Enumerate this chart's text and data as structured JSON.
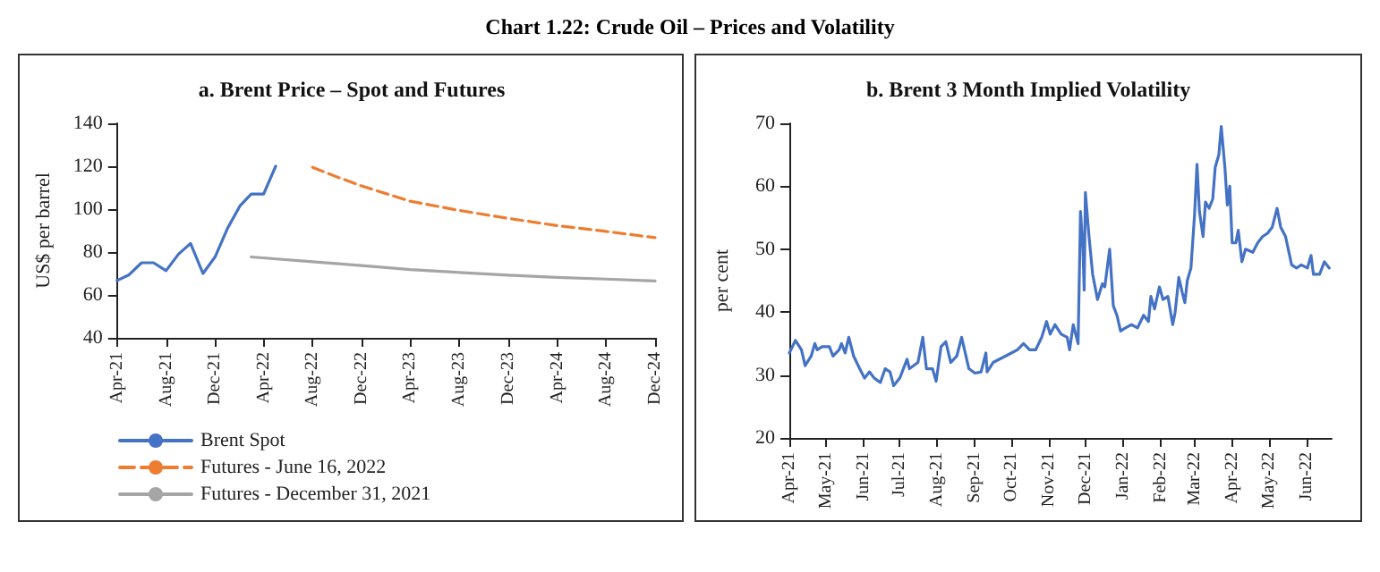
{
  "chart_data": [
    {
      "type": "line",
      "title": "a. Brent Price – Spot and Futures",
      "ylabel": "US$ per barrel",
      "annotations": [
        "Chart 1.22: Crude Oil – Prices and Volatility"
      ],
      "legend": "bottom",
      "marker": "none",
      "xlim": [
        "2021-04",
        "2024-12"
      ],
      "xticks": [
        {
          "value": "2021-04",
          "label": "Apr-21"
        },
        {
          "value": "2021-08",
          "label": "Aug-21"
        },
        {
          "value": "2021-12",
          "label": "Dec-21"
        },
        {
          "value": "2022-04",
          "label": "Apr-22"
        },
        {
          "value": "2022-08",
          "label": "Aug-22"
        },
        {
          "value": "2022-12",
          "label": "Dec-22"
        },
        {
          "value": "2023-04",
          "label": "Apr-23"
        },
        {
          "value": "2023-08",
          "label": "Aug-23"
        },
        {
          "value": "2023-12",
          "label": "Dec-23"
        },
        {
          "value": "2024-04",
          "label": "Apr-24"
        },
        {
          "value": "2024-08",
          "label": "Aug-24"
        },
        {
          "value": "2024-12",
          "label": "Dec-24"
        }
      ],
      "ylim": [
        40,
        140
      ],
      "yticks": [
        40,
        60,
        80,
        100,
        120,
        140
      ],
      "series": [
        {
          "name": "Brent Spot",
          "color": "#4472c4",
          "line_style": "solid",
          "x": [
            "2021-04",
            "2021-05",
            "2021-06",
            "2021-07",
            "2021-08",
            "2021-09",
            "2021-10",
            "2021-11",
            "2021-12",
            "2022-01",
            "2022-02",
            "2022-03",
            "2022-04",
            "2022-05"
          ],
          "values": [
            66.7,
            69.4,
            75,
            75,
            71.3,
            79,
            84,
            70,
            77.7,
            91,
            101.5,
            107,
            107,
            120
          ]
        },
        {
          "name": "Futures - June 16, 2022",
          "color": "#ed7d31",
          "line_style": "dashed",
          "x": [
            "2022-08",
            "2022-10",
            "2022-12",
            "2023-04",
            "2023-08",
            "2023-12",
            "2024-04",
            "2024-08",
            "2024-12"
          ],
          "values": [
            119.5,
            115,
            110.8,
            103.7,
            99.4,
            95.7,
            92.3,
            89.6,
            86.7
          ]
        },
        {
          "name": "Futures - December 31, 2021",
          "color": "#a5a5a5",
          "line_style": "solid",
          "x": [
            "2022-03",
            "2022-08",
            "2022-12",
            "2023-04",
            "2023-08",
            "2023-12",
            "2024-04",
            "2024-08",
            "2024-12"
          ],
          "values": [
            77.7,
            75.5,
            73.7,
            71.8,
            70.5,
            69.2,
            68.2,
            67.4,
            66.5
          ]
        }
      ]
    },
    {
      "type": "line",
      "title": "b. Brent 3 Month Implied Volatility",
      "ylabel": "per cent",
      "marker": "none",
      "xlim": [
        "2021-04-01",
        "2022-06-22"
      ],
      "xticks": [
        {
          "value": "2021-04-01",
          "label": "Apr-21"
        },
        {
          "value": "2021-05-01",
          "label": "May-21"
        },
        {
          "value": "2021-06-01",
          "label": "Jun-21"
        },
        {
          "value": "2021-07-01",
          "label": "Jul-21"
        },
        {
          "value": "2021-08-01",
          "label": "Aug-21"
        },
        {
          "value": "2021-09-01",
          "label": "Sep-21"
        },
        {
          "value": "2021-10-01",
          "label": "Oct-21"
        },
        {
          "value": "2021-11-01",
          "label": "Nov-21"
        },
        {
          "value": "2021-12-01",
          "label": "Dec-21"
        },
        {
          "value": "2022-01-01",
          "label": "Jan-22"
        },
        {
          "value": "2022-02-01",
          "label": "Feb-22"
        },
        {
          "value": "2022-03-01",
          "label": "Mar-22"
        },
        {
          "value": "2022-04-01",
          "label": "Apr-22"
        },
        {
          "value": "2022-05-01",
          "label": "May-22"
        },
        {
          "value": "2022-06-01",
          "label": "Jun-22"
        }
      ],
      "ylim": [
        20,
        70
      ],
      "yticks": [
        20,
        30,
        40,
        50,
        60,
        70
      ],
      "series": [
        {
          "color": "#4472c4",
          "x": [
            "2021-04-01",
            "2021-04-06",
            "2021-04-11",
            "2021-04-14",
            "2021-04-19",
            "2021-04-22",
            "2021-04-24",
            "2021-04-28",
            "2021-05-04",
            "2021-05-07",
            "2021-05-12",
            "2021-05-14",
            "2021-05-17",
            "2021-05-20",
            "2021-05-24",
            "2021-05-29",
            "2021-06-02",
            "2021-06-06",
            "2021-06-10",
            "2021-06-15",
            "2021-06-19",
            "2021-06-23",
            "2021-06-26",
            "2021-07-01",
            "2021-07-07",
            "2021-07-09",
            "2021-07-16",
            "2021-07-20",
            "2021-07-23",
            "2021-07-28",
            "2021-07-31",
            "2021-08-04",
            "2021-08-08",
            "2021-08-12",
            "2021-08-17",
            "2021-08-21",
            "2021-08-27",
            "2021-09-01",
            "2021-09-06",
            "2021-09-10",
            "2021-09-11",
            "2021-09-16",
            "2021-09-21",
            "2021-09-26",
            "2021-10-01",
            "2021-10-06",
            "2021-10-11",
            "2021-10-16",
            "2021-10-21",
            "2021-10-26",
            "2021-10-30",
            "2021-11-02",
            "2021-11-06",
            "2021-11-11",
            "2021-11-16",
            "2021-11-18",
            "2021-11-21",
            "2021-11-25",
            "2021-11-27",
            "2021-11-29",
            "2021-11-30",
            "2021-12-01",
            "2021-12-04",
            "2021-12-07",
            "2021-12-11",
            "2021-12-15",
            "2021-12-17",
            "2021-12-21",
            "2021-12-24",
            "2021-12-27",
            "2021-12-30",
            "2022-01-03",
            "2022-01-08",
            "2022-01-13",
            "2022-01-18",
            "2022-01-22",
            "2022-01-24",
            "2022-01-27",
            "2022-01-31",
            "2022-02-03",
            "2022-02-07",
            "2022-02-11",
            "2022-02-13",
            "2022-02-16",
            "2022-02-19",
            "2022-02-21",
            "2022-02-23",
            "2022-02-26",
            "2022-03-01",
            "2022-03-03",
            "2022-03-05",
            "2022-03-08",
            "2022-03-10",
            "2022-03-13",
            "2022-03-16",
            "2022-03-18",
            "2022-03-21",
            "2022-03-23",
            "2022-03-26",
            "2022-03-28",
            "2022-03-30",
            "2022-04-01",
            "2022-04-04",
            "2022-04-06",
            "2022-04-09",
            "2022-04-12",
            "2022-04-18",
            "2022-04-22",
            "2022-04-26",
            "2022-04-30",
            "2022-05-04",
            "2022-05-08",
            "2022-05-11",
            "2022-05-15",
            "2022-05-20",
            "2022-05-24",
            "2022-05-28",
            "2022-06-02",
            "2022-06-05",
            "2022-06-07",
            "2022-06-12",
            "2022-06-16",
            "2022-06-20"
          ],
          "values": [
            33.5,
            35.5,
            34,
            31.5,
            33,
            35,
            34,
            34.5,
            34.5,
            33,
            34,
            35,
            33.5,
            36,
            33,
            31,
            29.5,
            30.5,
            29.5,
            28.8,
            31,
            30.5,
            28.3,
            29.5,
            32.5,
            31,
            32,
            36,
            31,
            31,
            29,
            34.5,
            35.3,
            32,
            33,
            36,
            31,
            30.3,
            30.5,
            33.5,
            30.5,
            32,
            32.5,
            33,
            33.5,
            34,
            35,
            34,
            34,
            36,
            38.5,
            36.5,
            38,
            36.5,
            36,
            34,
            38,
            35,
            56,
            50,
            43.5,
            59,
            52,
            46,
            42,
            44.5,
            44,
            50,
            41,
            39.5,
            37,
            37.5,
            38,
            37.5,
            39.5,
            38.5,
            42.5,
            40.5,
            44,
            42,
            42.5,
            38,
            40,
            45.5,
            43,
            41.5,
            45,
            47,
            55.5,
            63.5,
            56,
            52,
            57.5,
            56.5,
            58,
            63,
            65,
            69.5,
            63,
            57,
            60,
            51,
            51,
            53,
            48,
            50,
            49.5,
            51,
            52,
            52.5,
            53.5,
            56.5,
            53.5,
            52,
            47.5,
            47,
            47.5,
            47,
            49,
            46,
            46,
            48,
            47
          ]
        }
      ]
    }
  ]
}
